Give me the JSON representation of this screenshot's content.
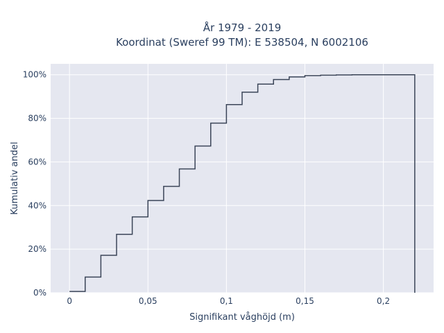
{
  "chart_data": {
    "type": "line",
    "subtype": "cumulative-step",
    "title_line1": "År 1979 - 2019",
    "title_line2": "Koordinat (Sweref 99 TM): E 538504, N 6002106",
    "xlabel": "Signifikant våghöjd (m)",
    "ylabel": "Kumulativ andel",
    "xlim": [
      -0.012,
      0.232
    ],
    "ylim": [
      0,
      1.05
    ],
    "x_ticks": [
      0,
      0.05,
      0.1,
      0.15,
      0.2
    ],
    "x_tick_labels": [
      "0",
      "0,05",
      "0,1",
      "0,15",
      "0,2"
    ],
    "y_ticks": [
      0,
      0.2,
      0.4,
      0.6,
      0.8,
      1.0
    ],
    "y_tick_labels": [
      "0%",
      "20%",
      "40%",
      "60%",
      "80%",
      "100%"
    ],
    "grid": true,
    "line_color": "#3b4558",
    "plot_bg": "#e5e7f0",
    "bin_edges": [
      0,
      0.01,
      0.02,
      0.03,
      0.04,
      0.05,
      0.06,
      0.07,
      0.08,
      0.09,
      0.1,
      0.11,
      0.12,
      0.13,
      0.14,
      0.15,
      0.16,
      0.17,
      0.18,
      0.19,
      0.2,
      0.21,
      0.22
    ],
    "cumulative": [
      0.006,
      0.072,
      0.172,
      0.268,
      0.348,
      0.423,
      0.488,
      0.568,
      0.673,
      0.778,
      0.863,
      0.92,
      0.957,
      0.978,
      0.99,
      0.996,
      0.998,
      0.999,
      1.0,
      1.0,
      1.0,
      1.0
    ]
  }
}
